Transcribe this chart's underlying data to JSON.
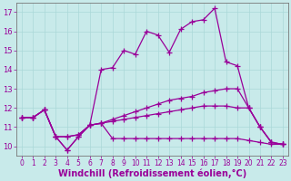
{
  "background_color": "#c8eaea",
  "line_color": "#990099",
  "marker": "+",
  "markersize": 4,
  "linewidth": 0.9,
  "xlabel": "Windchill (Refroidissement éolien,°C)",
  "xlabel_fontsize": 7,
  "xtick_fontsize": 5.5,
  "ytick_fontsize": 6,
  "xlim": [
    -0.5,
    23.5
  ],
  "ylim": [
    9.5,
    17.5
  ],
  "xticks": [
    0,
    1,
    2,
    3,
    4,
    5,
    6,
    7,
    8,
    9,
    10,
    11,
    12,
    13,
    14,
    15,
    16,
    17,
    18,
    19,
    20,
    21,
    22,
    23
  ],
  "yticks": [
    10,
    11,
    12,
    13,
    14,
    15,
    16,
    17
  ],
  "grid_color": "#aad8d8",
  "lines": [
    {
      "x": [
        0,
        1,
        2,
        3,
        4,
        5,
        6,
        7,
        8,
        9,
        10,
        11,
        12,
        13,
        14,
        15,
        16,
        17,
        18,
        19,
        20,
        21,
        22,
        23
      ],
      "y": [
        11.5,
        11.5,
        11.9,
        10.5,
        9.8,
        10.5,
        11.1,
        14.0,
        14.1,
        15.0,
        14.8,
        16.0,
        15.8,
        14.9,
        16.1,
        16.5,
        16.6,
        17.2,
        14.4,
        14.2,
        12.0,
        11.0,
        10.2,
        10.1
      ]
    },
    {
      "x": [
        0,
        1,
        2,
        3,
        4,
        5,
        6,
        7,
        8,
        9,
        10,
        11,
        12,
        13,
        14,
        15,
        16,
        17,
        18,
        19,
        20,
        21,
        22,
        23
      ],
      "y": [
        11.5,
        11.5,
        11.9,
        10.5,
        10.5,
        10.6,
        11.1,
        11.2,
        11.4,
        11.6,
        11.8,
        12.0,
        12.2,
        12.4,
        12.5,
        12.6,
        12.8,
        12.9,
        13.0,
        13.0,
        12.0,
        11.0,
        10.2,
        10.1
      ]
    },
    {
      "x": [
        0,
        1,
        2,
        3,
        4,
        5,
        6,
        7,
        8,
        9,
        10,
        11,
        12,
        13,
        14,
        15,
        16,
        17,
        18,
        19,
        20,
        21,
        22,
        23
      ],
      "y": [
        11.5,
        11.5,
        11.9,
        10.5,
        10.5,
        10.6,
        11.1,
        11.2,
        11.3,
        11.4,
        11.5,
        11.6,
        11.7,
        11.8,
        11.9,
        12.0,
        12.1,
        12.1,
        12.1,
        12.0,
        12.0,
        11.0,
        10.2,
        10.1
      ]
    },
    {
      "x": [
        0,
        1,
        2,
        3,
        4,
        5,
        6,
        7,
        8,
        9,
        10,
        11,
        12,
        13,
        14,
        15,
        16,
        17,
        18,
        19,
        20,
        21,
        22,
        23
      ],
      "y": [
        11.5,
        11.5,
        11.9,
        10.5,
        9.8,
        10.5,
        11.1,
        11.2,
        10.4,
        10.4,
        10.4,
        10.4,
        10.4,
        10.4,
        10.4,
        10.4,
        10.4,
        10.4,
        10.4,
        10.4,
        10.3,
        10.2,
        10.1,
        10.1
      ]
    }
  ]
}
